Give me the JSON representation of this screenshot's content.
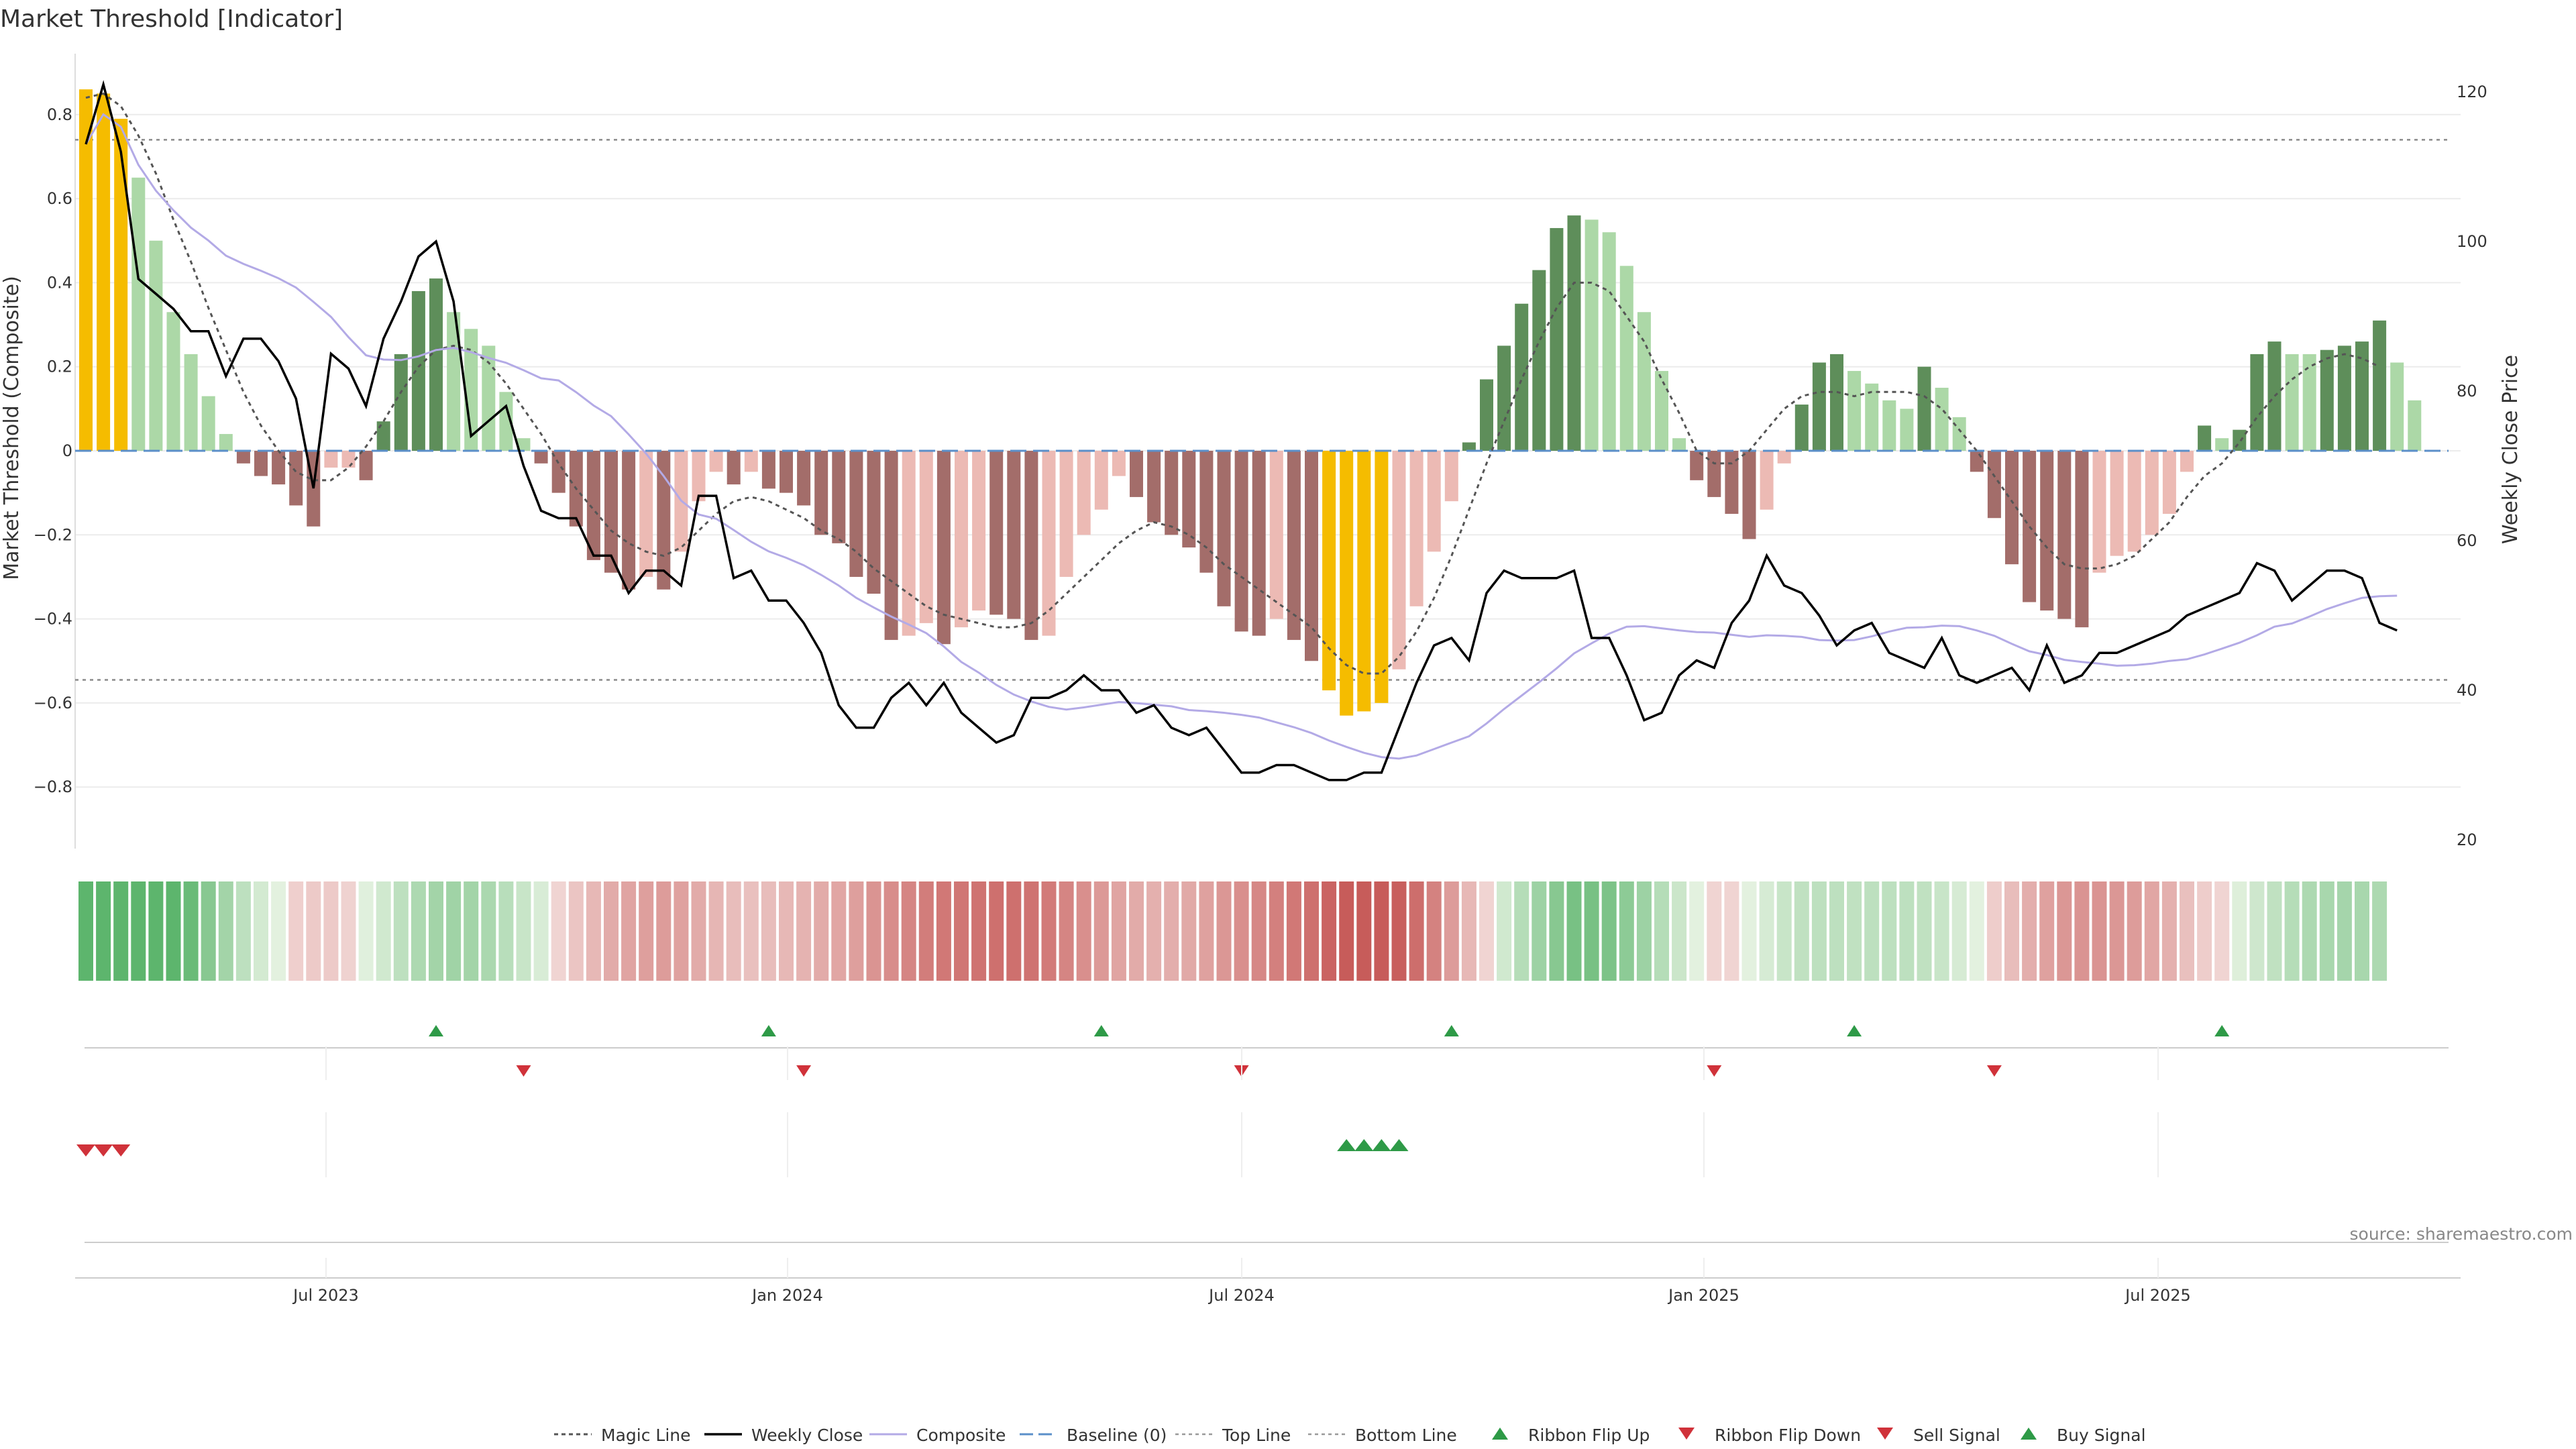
{
  "title": "Market Threshold [Indicator]",
  "source": "source: sharemaestro.com",
  "chart_data": {
    "type": "bar",
    "title": "Market Threshold [Indicator]",
    "ylabel": "Market Threshold (Composite)",
    "y2label": "Weekly Close Price",
    "ylim": [
      -0.95,
      0.9
    ],
    "y2lim": [
      17,
      123
    ],
    "yticks": [
      "0.8",
      "0.6",
      "0.4",
      "0.2",
      "0",
      "−0.2",
      "−0.4",
      "−0.6",
      "−0.8"
    ],
    "y2ticks": [
      "120",
      "100",
      "80",
      "60",
      "40",
      "20"
    ],
    "xticks": [
      "Jul 2023",
      "Jan 2024",
      "Jul 2024",
      "Jan 2025",
      "Jul 2025"
    ],
    "top_line": 0.74,
    "bottom_line": -0.545,
    "composite": [
      0.86,
      0.85,
      0.79,
      0.65,
      0.5,
      0.33,
      0.23,
      0.13,
      0.04,
      -0.03,
      -0.06,
      -0.08,
      -0.13,
      -0.18,
      -0.04,
      -0.04,
      -0.07,
      0.07,
      0.23,
      0.38,
      0.41,
      0.33,
      0.29,
      0.25,
      0.14,
      0.03,
      -0.03,
      -0.1,
      -0.18,
      -0.26,
      -0.29,
      -0.33,
      -0.3,
      -0.33,
      -0.24,
      -0.12,
      -0.05,
      -0.08,
      -0.05,
      -0.09,
      -0.1,
      -0.13,
      -0.2,
      -0.22,
      -0.3,
      -0.34,
      -0.45,
      -0.44,
      -0.41,
      -0.46,
      -0.42,
      -0.38,
      -0.39,
      -0.4,
      -0.45,
      -0.44,
      -0.3,
      -0.2,
      -0.14,
      -0.06,
      -0.11,
      -0.17,
      -0.2,
      -0.23,
      -0.29,
      -0.37,
      -0.43,
      -0.44,
      -0.4,
      -0.45,
      -0.5,
      -0.57,
      -0.63,
      -0.62,
      -0.6,
      -0.52,
      -0.37,
      -0.24,
      -0.12,
      0.02,
      0.17,
      0.25,
      0.35,
      0.43,
      0.53,
      0.56,
      0.55,
      0.52,
      0.44,
      0.33,
      0.19,
      0.03,
      -0.07,
      -0.11,
      -0.15,
      -0.21,
      -0.14,
      -0.03,
      0.11,
      0.21,
      0.23,
      0.19,
      0.16,
      0.12,
      0.1,
      0.2,
      0.15,
      0.08,
      -0.05,
      -0.16,
      -0.27,
      -0.36,
      -0.38,
      -0.4,
      -0.42,
      -0.29,
      -0.25,
      -0.24,
      -0.2,
      -0.15,
      -0.05,
      0.06,
      0.03,
      0.05,
      0.23,
      0.26,
      0.23,
      0.23,
      0.24,
      0.25,
      0.26,
      0.31,
      0.21,
      0.12
    ],
    "magic_line": [
      0.84,
      0.85,
      0.82,
      0.75,
      0.66,
      0.55,
      0.45,
      0.34,
      0.24,
      0.14,
      0.06,
      0.0,
      -0.05,
      -0.07,
      -0.07,
      -0.04,
      0.01,
      0.07,
      0.14,
      0.2,
      0.24,
      0.25,
      0.24,
      0.21,
      0.16,
      0.1,
      0.04,
      -0.03,
      -0.09,
      -0.14,
      -0.19,
      -0.22,
      -0.24,
      -0.25,
      -0.23,
      -0.19,
      -0.15,
      -0.12,
      -0.11,
      -0.12,
      -0.14,
      -0.16,
      -0.19,
      -0.21,
      -0.24,
      -0.28,
      -0.31,
      -0.34,
      -0.37,
      -0.39,
      -0.4,
      -0.41,
      -0.42,
      -0.42,
      -0.41,
      -0.38,
      -0.34,
      -0.3,
      -0.26,
      -0.22,
      -0.19,
      -0.17,
      -0.18,
      -0.2,
      -0.23,
      -0.27,
      -0.3,
      -0.33,
      -0.36,
      -0.39,
      -0.42,
      -0.47,
      -0.51,
      -0.53,
      -0.53,
      -0.49,
      -0.43,
      -0.35,
      -0.25,
      -0.14,
      -0.03,
      0.07,
      0.17,
      0.26,
      0.34,
      0.4,
      0.4,
      0.38,
      0.32,
      0.26,
      0.17,
      0.09,
      0.0,
      -0.03,
      -0.03,
      0.0,
      0.05,
      0.1,
      0.13,
      0.14,
      0.14,
      0.13,
      0.14,
      0.14,
      0.14,
      0.13,
      0.1,
      0.05,
      0.0,
      -0.06,
      -0.12,
      -0.18,
      -0.23,
      -0.27,
      -0.28,
      -0.28,
      -0.27,
      -0.25,
      -0.21,
      -0.17,
      -0.11,
      -0.06,
      -0.03,
      0.02,
      0.08,
      0.13,
      0.17,
      0.2,
      0.22,
      0.23,
      0.22,
      0.2
    ],
    "weekly_close": [
      113,
      121,
      112,
      95,
      93,
      91,
      88,
      88,
      82,
      87,
      87,
      84,
      79,
      67,
      85,
      83,
      78,
      87,
      92,
      98,
      100,
      92,
      74,
      76,
      78,
      70,
      64,
      63,
      63,
      58,
      58,
      53,
      56,
      56,
      54,
      66,
      66,
      55,
      56,
      52,
      52,
      49,
      45,
      38,
      35,
      35,
      39,
      41,
      38,
      41,
      37,
      35,
      33,
      34,
      39,
      39,
      40,
      42,
      40,
      40,
      37,
      38,
      35,
      34,
      35,
      32,
      29,
      29,
      30,
      30,
      29,
      28,
      28,
      29,
      29,
      35,
      41,
      46,
      47,
      44,
      53,
      56,
      55,
      55,
      55,
      56,
      47,
      47,
      42,
      36,
      37,
      42,
      44,
      43,
      49,
      52,
      58,
      54,
      53,
      50,
      46,
      48,
      49,
      45,
      44,
      43,
      47,
      42,
      41,
      42,
      43,
      40,
      46,
      41,
      42,
      45,
      45,
      46,
      47,
      48,
      50,
      51,
      52,
      53,
      57,
      56,
      52,
      54,
      56,
      56,
      55,
      49,
      48
    ],
    "baseline_label": "Baseline (0)",
    "series": [
      {
        "name": "Magic Line",
        "color": "#555555"
      },
      {
        "name": "Weekly Close",
        "color": "#000000"
      },
      {
        "name": "Composite",
        "color": "#a9a0e0"
      },
      {
        "name": "Baseline (0)",
        "color": "#5b8fc9"
      },
      {
        "name": "Top Line",
        "color": "#999999"
      },
      {
        "name": "Bottom Line",
        "color": "#999999"
      },
      {
        "name": "Ribbon Flip Up",
        "color": "#2e9a47"
      },
      {
        "name": "Ribbon Flip Down",
        "color": "#d0323a"
      },
      {
        "name": "Sell Signal",
        "color": "#d0323a"
      },
      {
        "name": "Buy Signal",
        "color": "#2e9a47"
      }
    ],
    "ribbon_flip_up_weeks": [
      20,
      39,
      58,
      78,
      101,
      122
    ],
    "ribbon_flip_down_weeks": [
      25,
      41,
      66,
      93,
      109
    ],
    "sell_signal_weeks": [
      0,
      1,
      2
    ],
    "buy_signal_weeks": [
      72,
      73,
      74,
      75
    ]
  },
  "legend": [
    "Magic Line",
    "Weekly Close",
    "Composite",
    "Baseline (0)",
    "Top Line",
    "Bottom Line",
    "Ribbon Flip Up",
    "Ribbon Flip Down",
    "Sell Signal",
    "Buy Signal"
  ]
}
